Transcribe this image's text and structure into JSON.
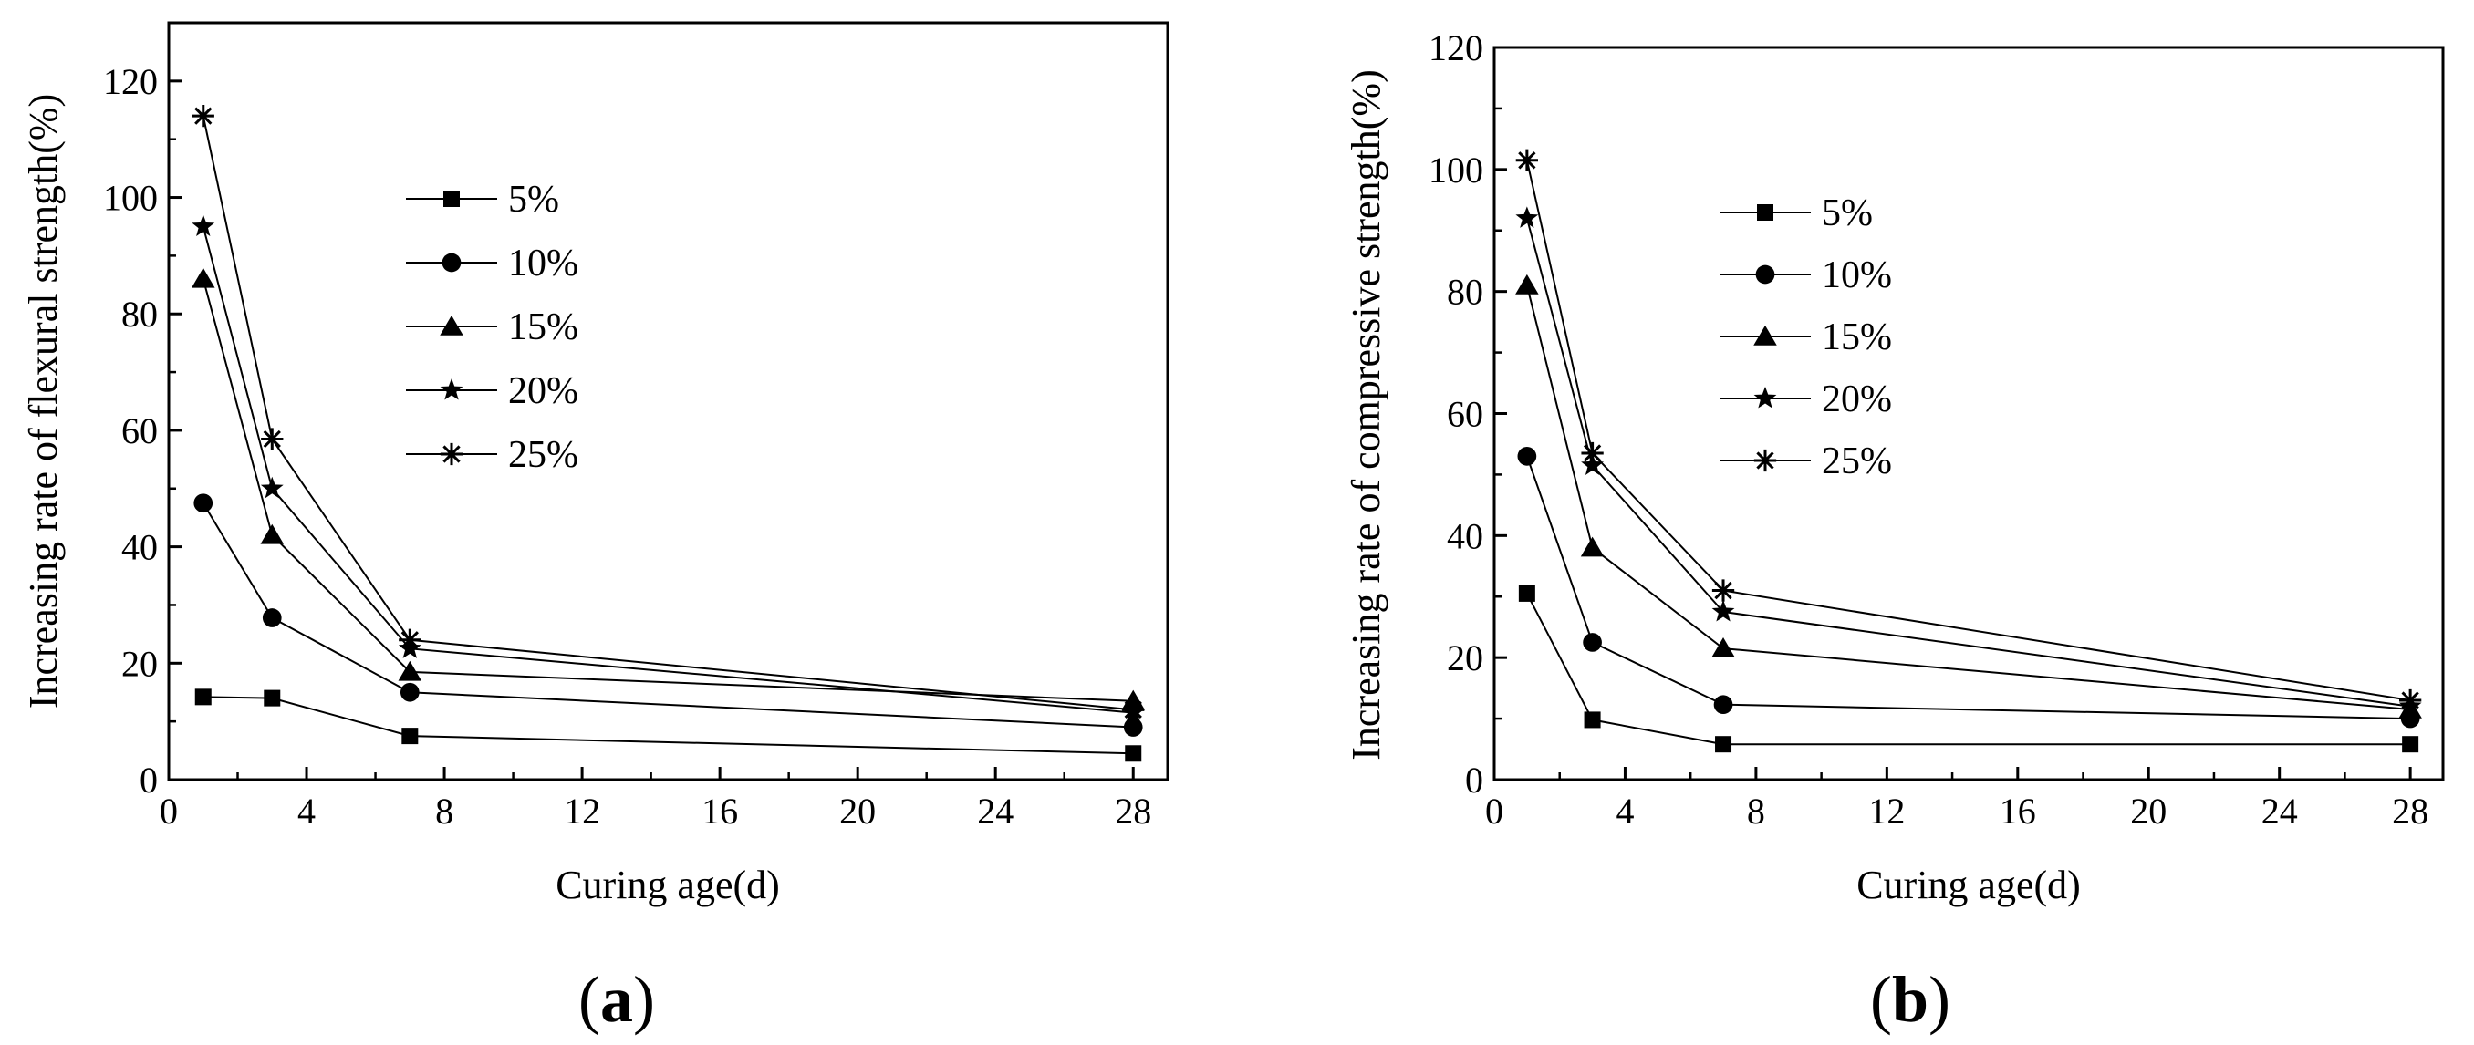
{
  "figure": {
    "panel_labels": [
      {
        "open": "(",
        "letter": "a",
        "close": ")"
      },
      {
        "open": "(",
        "letter": "b",
        "close": ")"
      }
    ]
  },
  "chart_data": [
    {
      "type": "line",
      "panel": "a",
      "title": "",
      "xlabel": "Curing age(d)",
      "ylabel": "Increasing rate of flexural strength(%)",
      "xlim": [
        0,
        29
      ],
      "ylim": [
        0,
        130
      ],
      "xticks": [
        0,
        4,
        8,
        12,
        16,
        20,
        24,
        28
      ],
      "yticks": [
        0,
        20,
        40,
        60,
        80,
        100,
        120
      ],
      "legend_position": "top-center",
      "x": [
        1,
        3,
        7,
        28
      ],
      "series": [
        {
          "name": "5%",
          "marker": "square",
          "values": [
            14.2,
            14.0,
            7.5,
            4.5
          ]
        },
        {
          "name": "10%",
          "marker": "circle",
          "values": [
            47.5,
            27.8,
            15.0,
            9.0
          ]
        },
        {
          "name": "15%",
          "marker": "triangle",
          "values": [
            86.0,
            42.0,
            18.5,
            13.5
          ]
        },
        {
          "name": "20%",
          "marker": "star",
          "values": [
            95.0,
            50.0,
            22.5,
            11.5
          ]
        },
        {
          "name": "25%",
          "marker": "asterisk",
          "values": [
            114.0,
            58.5,
            24.0,
            12.0
          ]
        }
      ]
    },
    {
      "type": "line",
      "panel": "b",
      "title": "",
      "xlabel": "Curing age(d)",
      "ylabel": "Increasing rate of compressive strength(%)",
      "xlim": [
        0,
        29
      ],
      "ylim": [
        0,
        120
      ],
      "xticks": [
        0,
        4,
        8,
        12,
        16,
        20,
        24,
        28
      ],
      "yticks": [
        0,
        20,
        40,
        60,
        80,
        100,
        120
      ],
      "legend_position": "top-center",
      "x": [
        1,
        3,
        7,
        28
      ],
      "series": [
        {
          "name": "5%",
          "marker": "square",
          "values": [
            30.5,
            9.8,
            5.8,
            5.8
          ]
        },
        {
          "name": "10%",
          "marker": "circle",
          "values": [
            53.0,
            22.5,
            12.3,
            10.0
          ]
        },
        {
          "name": "15%",
          "marker": "triangle",
          "values": [
            81.0,
            38.0,
            21.5,
            11.5
          ]
        },
        {
          "name": "20%",
          "marker": "star",
          "values": [
            92.0,
            51.5,
            27.5,
            12.0
          ]
        },
        {
          "name": "25%",
          "marker": "asterisk",
          "values": [
            101.5,
            53.5,
            31.0,
            13.0
          ]
        }
      ]
    }
  ]
}
